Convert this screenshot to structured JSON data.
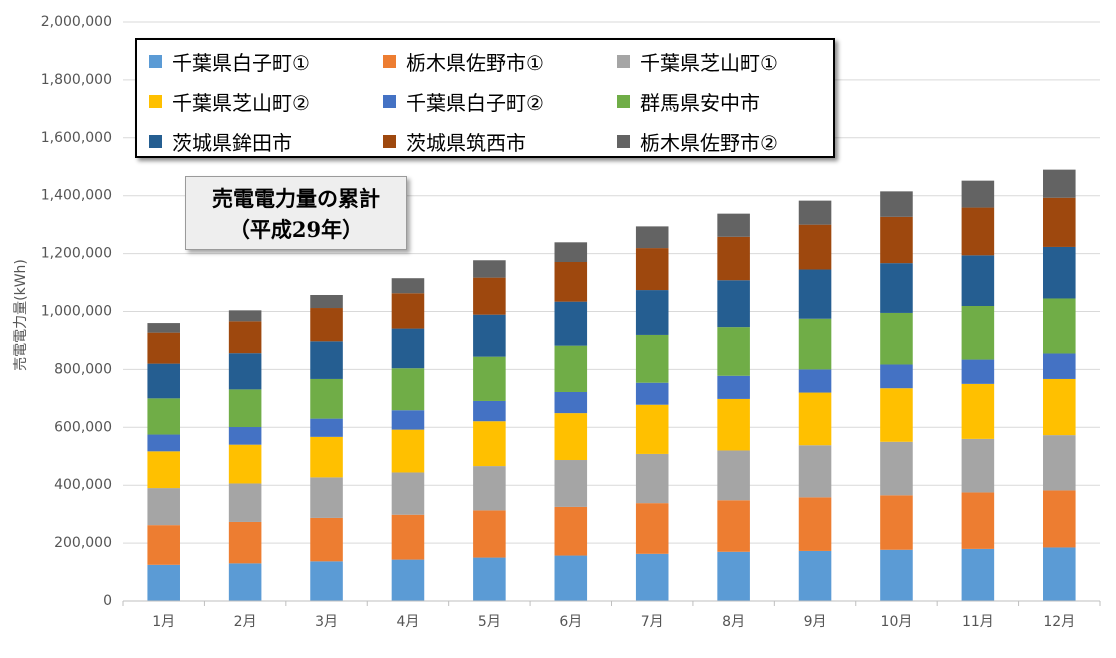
{
  "chart_data": {
    "type": "bar",
    "stacked": true,
    "title": "売電電力量の累計",
    "subtitle": "（平成29年）",
    "xlabel": "",
    "ylabel": "売電電力量(kWh)",
    "ylim": [
      0,
      2000000
    ],
    "y_ticks": [
      "0",
      "200,000",
      "400,000",
      "600,000",
      "800,000",
      "1,000,000",
      "1,200,000",
      "1,400,000",
      "1,600,000",
      "1,800,000",
      "2,000,000"
    ],
    "y_tick_values": [
      0,
      200000,
      400000,
      600000,
      800000,
      1000000,
      1200000,
      1400000,
      1600000,
      1800000,
      2000000
    ],
    "grid": true,
    "legend_position": "top-left",
    "categories": [
      "1月",
      "2月",
      "3月",
      "4月",
      "5月",
      "6月",
      "7月",
      "8月",
      "9月",
      "10月",
      "11月",
      "12月"
    ],
    "series": [
      {
        "name": "千葉県白子町①",
        "color": "#5b9bd5",
        "values": [
          125000,
          130000,
          137000,
          143000,
          150000,
          157000,
          163000,
          170000,
          173000,
          177000,
          180000,
          185000
        ]
      },
      {
        "name": "栃木県佐野市①",
        "color": "#ed7d31",
        "values": [
          137000,
          143000,
          150000,
          155000,
          163000,
          168000,
          175000,
          178000,
          185000,
          188000,
          195000,
          197000
        ]
      },
      {
        "name": "千葉県芝山町①",
        "color": "#a5a5a5",
        "values": [
          128000,
          133000,
          140000,
          146000,
          153000,
          162000,
          170000,
          172000,
          180000,
          185000,
          185000,
          191000
        ]
      },
      {
        "name": "千葉県芝山町②",
        "color": "#ffc000",
        "values": [
          127000,
          134000,
          140000,
          148000,
          155000,
          162000,
          170000,
          178000,
          182000,
          185000,
          190000,
          194000
        ]
      },
      {
        "name": "千葉県白子町②",
        "color": "#4472c4",
        "values": [
          58000,
          61000,
          63000,
          67000,
          70000,
          73000,
          76000,
          80000,
          80000,
          82000,
          84000,
          88000
        ]
      },
      {
        "name": "群馬県安中市",
        "color": "#70ad47",
        "values": [
          125000,
          130000,
          137000,
          145000,
          153000,
          160000,
          165000,
          168000,
          175000,
          178000,
          185000,
          190000
        ]
      },
      {
        "name": "茨城県鉾田市",
        "color": "#255e91",
        "values": [
          120000,
          125000,
          130000,
          137000,
          145000,
          152000,
          155000,
          162000,
          170000,
          172000,
          175000,
          178000
        ]
      },
      {
        "name": "茨城県筑西市",
        "color": "#9e480e",
        "values": [
          107000,
          110000,
          115000,
          122000,
          128000,
          137000,
          145000,
          150000,
          155000,
          160000,
          165000,
          170000
        ]
      },
      {
        "name": "栃木県佐野市②",
        "color": "#636363",
        "values": [
          33000,
          38000,
          45000,
          52000,
          60000,
          68000,
          75000,
          80000,
          83000,
          88000,
          93000,
          97000
        ]
      }
    ]
  }
}
